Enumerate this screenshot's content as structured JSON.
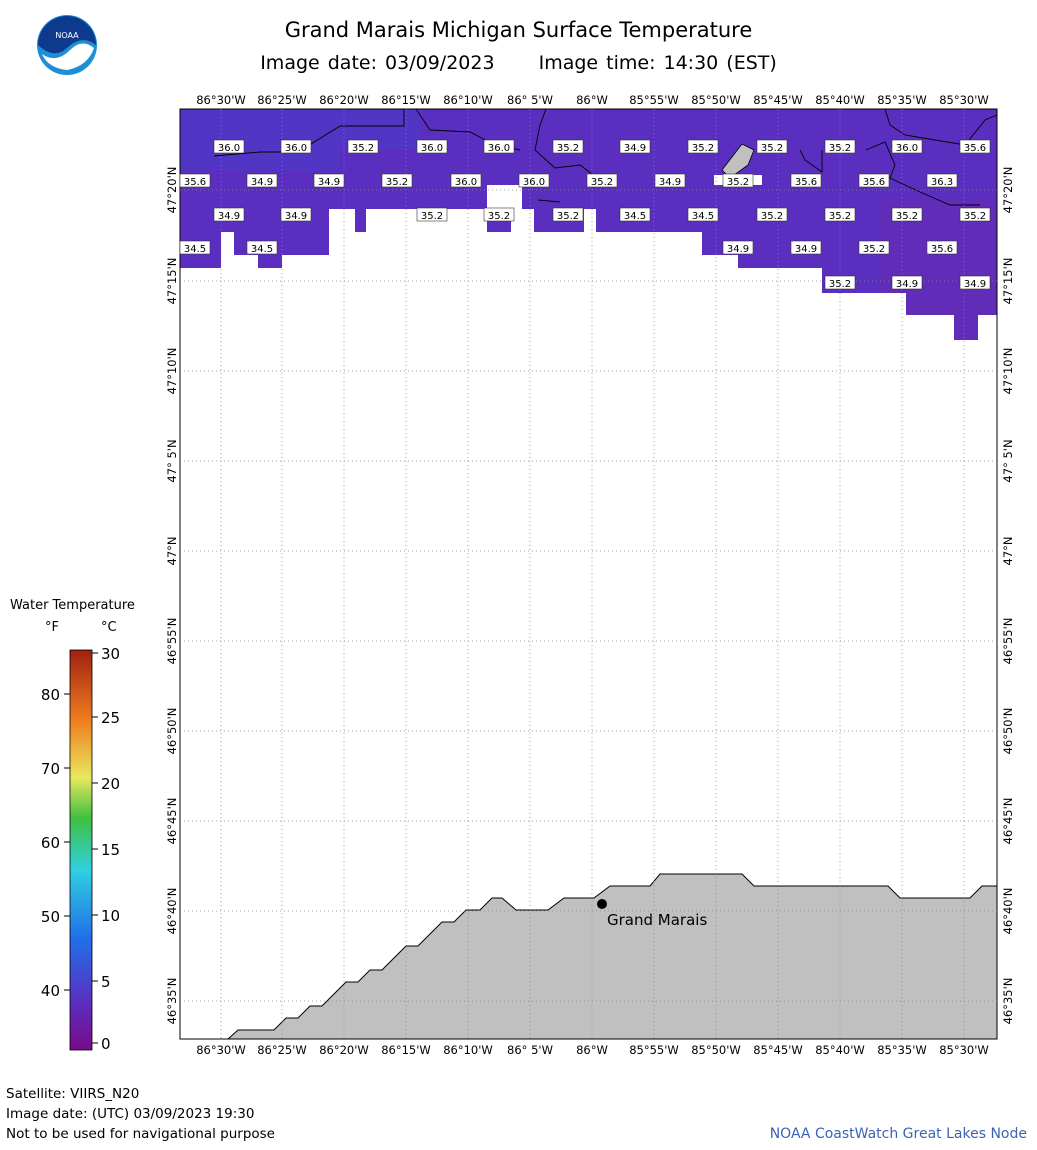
{
  "title": "Grand Marais Michigan Surface Temperature",
  "image_date": "Image date: 03/09/2023",
  "image_time": "Image time: 14:30 (EST)",
  "logo_text": "NOAA",
  "colors": {
    "water": "#5a2fc0",
    "land": "#c0c0c0",
    "grid": "#888888",
    "credit": "#3b63b5"
  },
  "longitude_labels": [
    "86°30'W",
    "86°25'W",
    "86°20'W",
    "86°15'W",
    "86°10'W",
    "86° 5'W",
    "86°W",
    "85°55'W",
    "85°50'W",
    "85°45'W",
    "85°40'W",
    "85°35'W",
    "85°30'W"
  ],
  "latitude_labels": [
    "47°20'N",
    "47°15'N",
    "47°10'N",
    "47° 5'N",
    "47°N",
    "46°55'N",
    "46°50'N",
    "46°45'N",
    "46°40'N",
    "46°35'N"
  ],
  "temperature_labels": [
    [
      "36.0",
      "36.0",
      "35.2",
      "36.0",
      "36.0",
      "35.2",
      "34.9",
      "35.2",
      "35.2",
      "35.2",
      "36.0",
      "35.6"
    ],
    [
      "35.6",
      "34.9",
      "34.9",
      "35.2",
      "36.0",
      "36.0",
      "35.2",
      "34.9",
      "35.2",
      "35.6",
      "35.6",
      "36.3"
    ],
    [
      "34.9",
      "34.9",
      "35.2",
      "35.2",
      "35.2",
      "34.5",
      "34.5",
      "35.2",
      "35.2",
      "35.2",
      "35.2"
    ],
    [
      "34.5",
      "34.5",
      "34.9",
      "34.9",
      "35.2",
      "35.6"
    ],
    [
      "35.2",
      "34.9",
      "34.9"
    ]
  ],
  "place_label": "Grand Marais",
  "legend": {
    "title": "Water Temperature",
    "unit_f": "°F",
    "unit_c": "°C",
    "f_ticks": [
      "80",
      "70",
      "60",
      "50",
      "40"
    ],
    "c_ticks": [
      "30",
      "25",
      "20",
      "15",
      "10",
      "5",
      "0"
    ]
  },
  "footer": {
    "satellite": "Satellite: VIIRS_N20",
    "utc_date": "Image date: (UTC) 03/09/2023  19:30",
    "disclaimer": "Not to be used for navigational purpose",
    "credit": "NOAA CoastWatch Great Lakes Node"
  }
}
